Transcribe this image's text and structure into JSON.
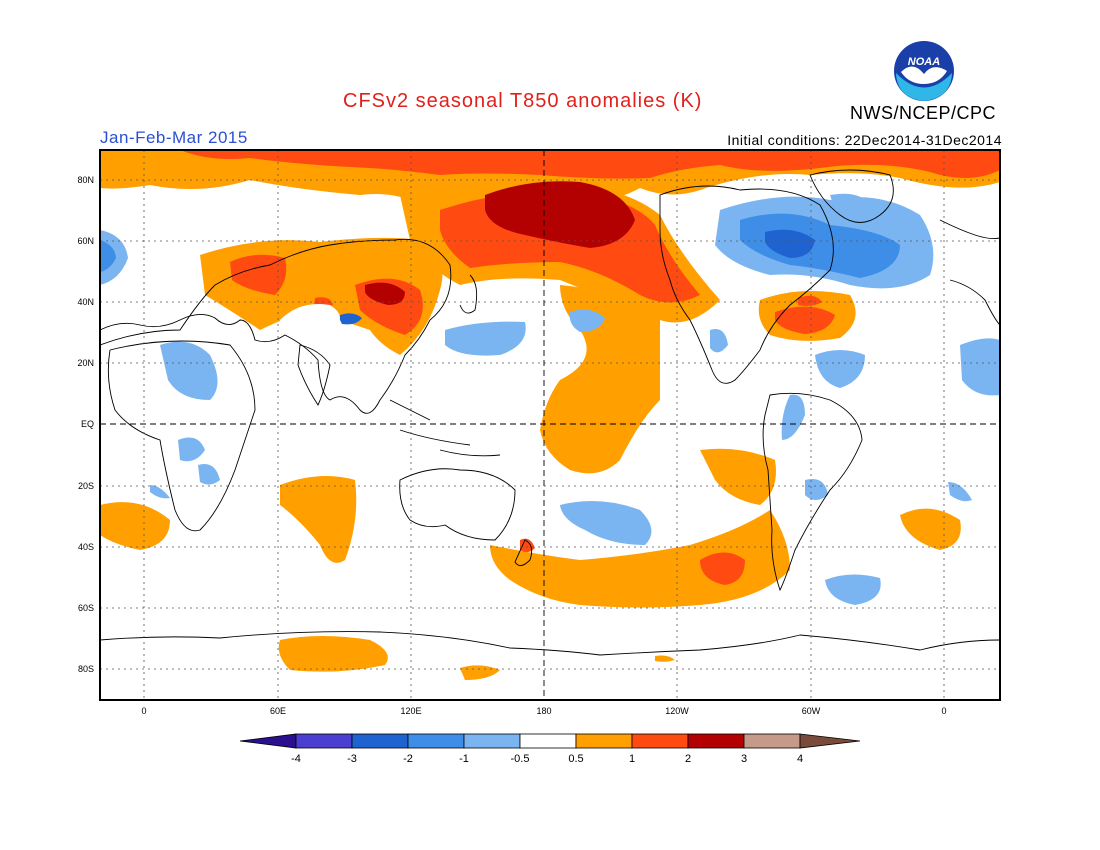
{
  "title": "CFSv2 seasonal T850 anomalies (K)",
  "season": "Jan-Feb-Mar 2015",
  "initial_conditions": "Initial conditions: 22Dec2014-31Dec2014",
  "organization": "NWS/NCEP/CPC",
  "logo_text": "NOAA",
  "colors": {
    "title": "#e0201a",
    "season": "#2a4fd6",
    "neg4": "#2a0f8f",
    "neg3": "#4a3fd0",
    "neg2": "#1f63d0",
    "neg1": "#3e8ee8",
    "neg05": "#7ab5f2",
    "zero": "#ffffff",
    "pos05": "#ff9f00",
    "pos1": "#ff4a12",
    "pos2": "#b30000",
    "pos3": "#c69a8a",
    "pos4": "#7a4a3a"
  },
  "lat_labels": [
    "80N",
    "60N",
    "40N",
    "20N",
    "EQ",
    "20S",
    "40S",
    "60S",
    "80S"
  ],
  "lon_labels": [
    "0",
    "60E",
    "120E",
    "180",
    "120W",
    "60W",
    "0"
  ],
  "colorbar_labels": [
    "-4",
    "-3",
    "-2",
    "-1",
    "-0.5",
    "0.5",
    "1",
    "2",
    "3",
    "4"
  ]
}
